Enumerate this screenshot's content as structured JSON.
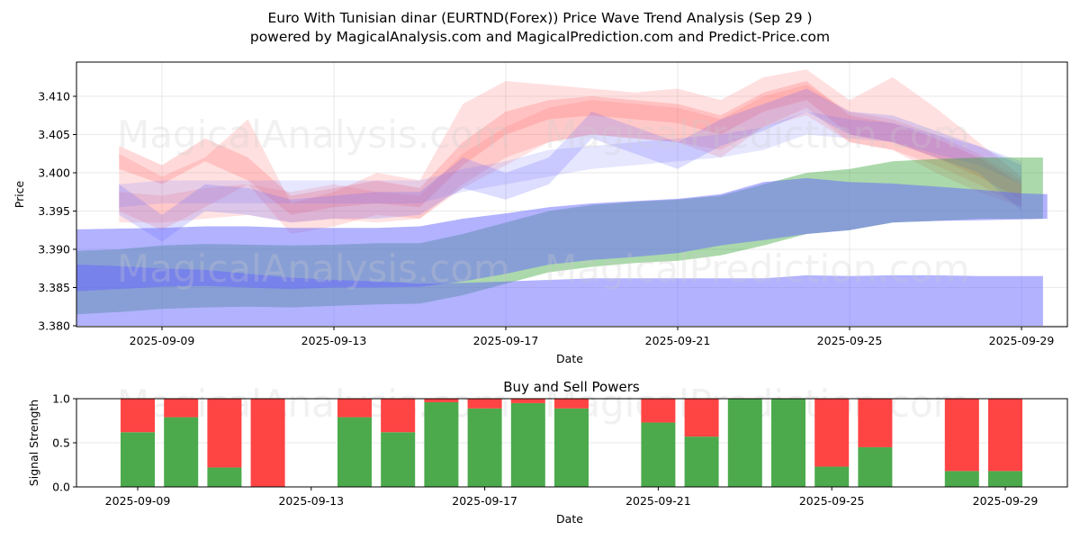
{
  "header": {
    "title": "Euro With Tunisian dinar (EURTND(Forex)) Price Wave Trend Analysis (Sep 29 )",
    "subtitle": "powered by MagicalAnalysis.com and MagicalPrediction.com and Predict-Price.com"
  },
  "watermarks": [
    "MagicalAnalysis.com",
    "MagicalPrediction.com"
  ],
  "colors": {
    "red_band": "#ff6666",
    "blue_band": "#6666ff",
    "green_band": "#2ca02c",
    "buy": "#4caa4c",
    "sell": "#ff4444"
  },
  "chart_data": [
    {
      "type": "area",
      "title": "",
      "xlabel": "Date",
      "ylabel": "Price",
      "ylim": [
        3.38,
        3.4143
      ],
      "xlim": [
        "2025-09-06.8",
        "2025-09-30.4"
      ],
      "yticks": [
        "3.380",
        "3.385",
        "3.390",
        "3.395",
        "3.400",
        "3.405",
        "3.410"
      ],
      "yticks_values": [
        3.38,
        3.385,
        3.39,
        3.395,
        3.4,
        3.405,
        3.41
      ],
      "xticks": [
        "2025-09-09",
        "2025-09-13",
        "2025-09-17",
        "2025-09-21",
        "2025-09-25",
        "2025-09-29"
      ],
      "xticks_day": [
        9,
        13,
        17,
        21,
        25,
        29
      ],
      "grid": true,
      "bands": [
        {
          "name": "wave-red-1",
          "color": "red",
          "opacity": 0.25,
          "x": [
            8,
            9,
            10,
            11,
            12,
            13,
            14,
            15,
            16,
            17,
            18,
            19,
            20,
            21,
            22,
            23,
            24,
            25,
            26,
            27,
            28,
            29
          ],
          "upper": [
            3.4035,
            3.401,
            3.4045,
            3.402,
            3.397,
            3.398,
            3.399,
            3.398,
            3.404,
            3.408,
            3.4095,
            3.41,
            3.4095,
            3.409,
            3.4075,
            3.4105,
            3.412,
            3.4075,
            3.4065,
            3.4045,
            3.402,
            3.3985
          ],
          "lower": [
            3.4005,
            3.3985,
            3.4015,
            3.399,
            3.3945,
            3.3955,
            3.396,
            3.3955,
            3.401,
            3.405,
            3.407,
            3.4075,
            3.407,
            3.4065,
            3.405,
            3.408,
            3.4095,
            3.405,
            3.404,
            3.402,
            3.3995,
            3.3965
          ]
        },
        {
          "name": "wave-red-2",
          "color": "red",
          "opacity": 0.2,
          "x": [
            8,
            9,
            10,
            11,
            12,
            13,
            14,
            15,
            16,
            17,
            18,
            19,
            20,
            21,
            22,
            23,
            24,
            25,
            26,
            27,
            28,
            29
          ],
          "upper": [
            3.4025,
            3.3995,
            3.402,
            3.407,
            3.396,
            3.3975,
            3.4,
            3.399,
            3.409,
            3.412,
            3.4115,
            3.411,
            3.4105,
            3.411,
            3.4095,
            3.4125,
            3.4135,
            3.4095,
            3.4125,
            3.4085,
            3.404,
            3.3995
          ],
          "lower": [
            3.395,
            3.3925,
            3.3955,
            3.3985,
            3.392,
            3.393,
            3.3945,
            3.394,
            3.3985,
            3.402,
            3.404,
            3.405,
            3.4045,
            3.404,
            3.402,
            3.406,
            3.4085,
            3.404,
            3.403,
            3.4,
            3.3975,
            3.3955
          ]
        },
        {
          "name": "wave-red-3",
          "color": "red",
          "opacity": 0.18,
          "x": [
            8,
            9,
            10,
            11,
            12,
            13,
            14,
            15,
            16,
            17,
            18,
            19,
            20,
            21,
            22,
            23,
            24,
            25,
            26,
            27,
            28,
            29
          ],
          "upper": [
            3.3975,
            3.397,
            3.398,
            3.3985,
            3.3975,
            3.3985,
            3.3975,
            3.397,
            3.4025,
            3.406,
            3.4085,
            3.4095,
            3.409,
            3.4085,
            3.407,
            3.41,
            3.4115,
            3.408,
            3.407,
            3.405,
            3.4025,
            3.399
          ],
          "lower": [
            3.3935,
            3.3935,
            3.394,
            3.3945,
            3.3935,
            3.394,
            3.3935,
            3.394,
            3.398,
            3.401,
            3.404,
            3.405,
            3.4045,
            3.404,
            3.403,
            3.406,
            3.4075,
            3.404,
            3.403,
            3.401,
            3.3985,
            3.3955
          ]
        },
        {
          "name": "wave-blue-1",
          "color": "blue",
          "opacity": 0.22,
          "x": [
            8,
            9,
            10,
            11,
            12,
            13,
            14,
            15,
            16,
            17,
            18,
            19,
            20,
            21,
            22,
            23,
            24,
            25,
            26,
            27,
            28,
            29
          ],
          "upper": [
            3.3985,
            3.3945,
            3.3985,
            3.398,
            3.3965,
            3.397,
            3.3975,
            3.3975,
            3.402,
            3.4,
            3.402,
            3.408,
            3.406,
            3.404,
            3.407,
            3.409,
            3.411,
            3.408,
            3.4075,
            3.4055,
            3.4035,
            3.401
          ],
          "lower": [
            3.3945,
            3.391,
            3.395,
            3.3945,
            3.3935,
            3.394,
            3.394,
            3.3945,
            3.398,
            3.3965,
            3.3985,
            3.4045,
            3.4025,
            3.4005,
            3.4035,
            3.4055,
            3.408,
            3.405,
            3.404,
            3.402,
            3.4,
            3.395
          ]
        },
        {
          "name": "wave-blue-2",
          "color": "blue",
          "opacity": 0.16,
          "x": [
            8,
            9,
            10,
            11,
            12,
            13,
            14,
            15,
            16,
            17,
            18,
            19,
            20,
            21,
            22,
            23,
            24,
            25,
            26,
            27,
            28,
            29
          ],
          "upper": [
            3.3985,
            3.399,
            3.399,
            3.399,
            3.399,
            3.399,
            3.399,
            3.399,
            3.4005,
            3.4015,
            3.403,
            3.4035,
            3.404,
            3.4045,
            3.405,
            3.406,
            3.408,
            3.407,
            3.4065,
            3.405,
            3.4035,
            3.4015
          ],
          "lower": [
            3.3955,
            3.396,
            3.396,
            3.396,
            3.396,
            3.396,
            3.396,
            3.396,
            3.3975,
            3.3985,
            3.3995,
            3.4005,
            3.401,
            3.4015,
            3.402,
            3.403,
            3.405,
            3.4045,
            3.404,
            3.4025,
            3.401,
            3.3985
          ]
        },
        {
          "name": "trend-green",
          "color": "green",
          "opacity": 0.4,
          "x": [
            7,
            8,
            9,
            10,
            11,
            12,
            13,
            14,
            15,
            16,
            17,
            18,
            19,
            20,
            21,
            22,
            23,
            24,
            25,
            26,
            27,
            28,
            29,
            29.5
          ],
          "upper": [
            3.3898,
            3.39,
            3.3905,
            3.3907,
            3.3906,
            3.3905,
            3.3906,
            3.3908,
            3.3908,
            3.392,
            3.3935,
            3.395,
            3.3958,
            3.3962,
            3.3965,
            3.397,
            3.3985,
            3.4,
            3.4005,
            3.4015,
            3.4018,
            3.402,
            3.402,
            3.402
          ],
          "lower": [
            3.3815,
            3.3818,
            3.3822,
            3.3824,
            3.3825,
            3.3824,
            3.3826,
            3.3828,
            3.3829,
            3.384,
            3.3855,
            3.387,
            3.3877,
            3.3882,
            3.3885,
            3.3892,
            3.3905,
            3.392,
            3.3925,
            3.3935,
            3.3937,
            3.394,
            3.394,
            3.394
          ]
        },
        {
          "name": "trend-blue-upper",
          "color": "blue",
          "opacity": 0.5,
          "x": [
            7,
            8,
            9,
            10,
            11,
            12,
            13,
            14,
            15,
            16,
            17,
            18,
            19,
            20,
            21,
            22,
            23,
            24,
            25,
            26,
            27,
            28,
            29,
            29.6
          ],
          "upper": [
            3.3926,
            3.3927,
            3.3928,
            3.393,
            3.393,
            3.3928,
            3.3928,
            3.3928,
            3.393,
            3.394,
            3.3947,
            3.3955,
            3.396,
            3.3963,
            3.3966,
            3.3972,
            3.3988,
            3.3993,
            3.3988,
            3.3986,
            3.3982,
            3.3978,
            3.3973,
            3.3972
          ],
          "lower": [
            3.3845,
            3.3848,
            3.3851,
            3.3852,
            3.385,
            3.3848,
            3.385,
            3.385,
            3.3851,
            3.3858,
            3.3868,
            3.388,
            3.3886,
            3.389,
            3.3895,
            3.3905,
            3.3912,
            3.392,
            3.3925,
            3.3935,
            3.3937,
            3.3938,
            3.3939,
            3.394
          ]
        },
        {
          "name": "trend-blue-lower",
          "color": "blue",
          "opacity": 0.5,
          "x": [
            7,
            8,
            9,
            10,
            11,
            12,
            13,
            14,
            15,
            16,
            17,
            18,
            19,
            20,
            21,
            22,
            23,
            24,
            25,
            26,
            27,
            28,
            29,
            29.5
          ],
          "upper": [
            3.388,
            3.3878,
            3.3875,
            3.3873,
            3.3868,
            3.3863,
            3.386,
            3.3858,
            3.3855,
            3.3856,
            3.3858,
            3.386,
            3.3862,
            3.3862,
            3.3862,
            3.3862,
            3.3862,
            3.3866,
            3.3865,
            3.3866,
            3.3866,
            3.3865,
            3.3865,
            3.3865
          ],
          "lower": [
            3.38,
            3.38,
            3.38,
            3.38,
            3.38,
            3.38,
            3.38,
            3.38,
            3.38,
            3.38,
            3.38,
            3.38,
            3.38,
            3.38,
            3.38,
            3.38,
            3.38,
            3.38,
            3.38,
            3.38,
            3.38,
            3.38,
            3.38,
            3.38
          ]
        }
      ]
    },
    {
      "type": "bar",
      "title": "Buy and Sell Powers",
      "xlabel": "Date",
      "ylabel": "Signal Strength",
      "ylim": [
        0,
        1
      ],
      "yticks": [
        "0.0",
        "0.5",
        "1.0"
      ],
      "yticks_values": [
        0,
        0.5,
        1.0
      ],
      "xticks": [
        "2025-09-09",
        "2025-09-13",
        "2025-09-17",
        "2025-09-21",
        "2025-09-25",
        "2025-09-29"
      ],
      "xticks_day": [
        9,
        13,
        17,
        21,
        25,
        29
      ],
      "grid": true,
      "stacked": true,
      "categories": [
        "2025-09-09",
        "2025-09-10",
        "2025-09-11",
        "2025-09-12",
        "2025-09-14",
        "2025-09-15",
        "2025-09-16",
        "2025-09-17",
        "2025-09-18",
        "2025-09-19",
        "2025-09-21",
        "2025-09-22",
        "2025-09-23",
        "2025-09-24",
        "2025-09-25",
        "2025-09-26",
        "2025-09-28",
        "2025-09-29"
      ],
      "days": [
        9,
        10,
        11,
        12,
        14,
        15,
        16,
        17,
        18,
        19,
        21,
        22,
        23,
        24,
        25,
        26,
        28,
        29
      ],
      "series": [
        {
          "name": "Buy",
          "color": "#4caa4c",
          "values": [
            0.62,
            0.79,
            0.22,
            0.0,
            0.79,
            0.62,
            0.96,
            0.89,
            0.95,
            0.89,
            0.73,
            0.57,
            1.0,
            1.0,
            0.23,
            0.45,
            0.18,
            0.18
          ]
        },
        {
          "name": "Sell",
          "color": "#ff4444",
          "values": [
            0.38,
            0.21,
            0.78,
            1.0,
            0.21,
            0.38,
            0.04,
            0.11,
            0.05,
            0.11,
            0.27,
            0.43,
            0.0,
            0.0,
            0.77,
            0.55,
            0.82,
            0.82
          ]
        }
      ]
    }
  ]
}
